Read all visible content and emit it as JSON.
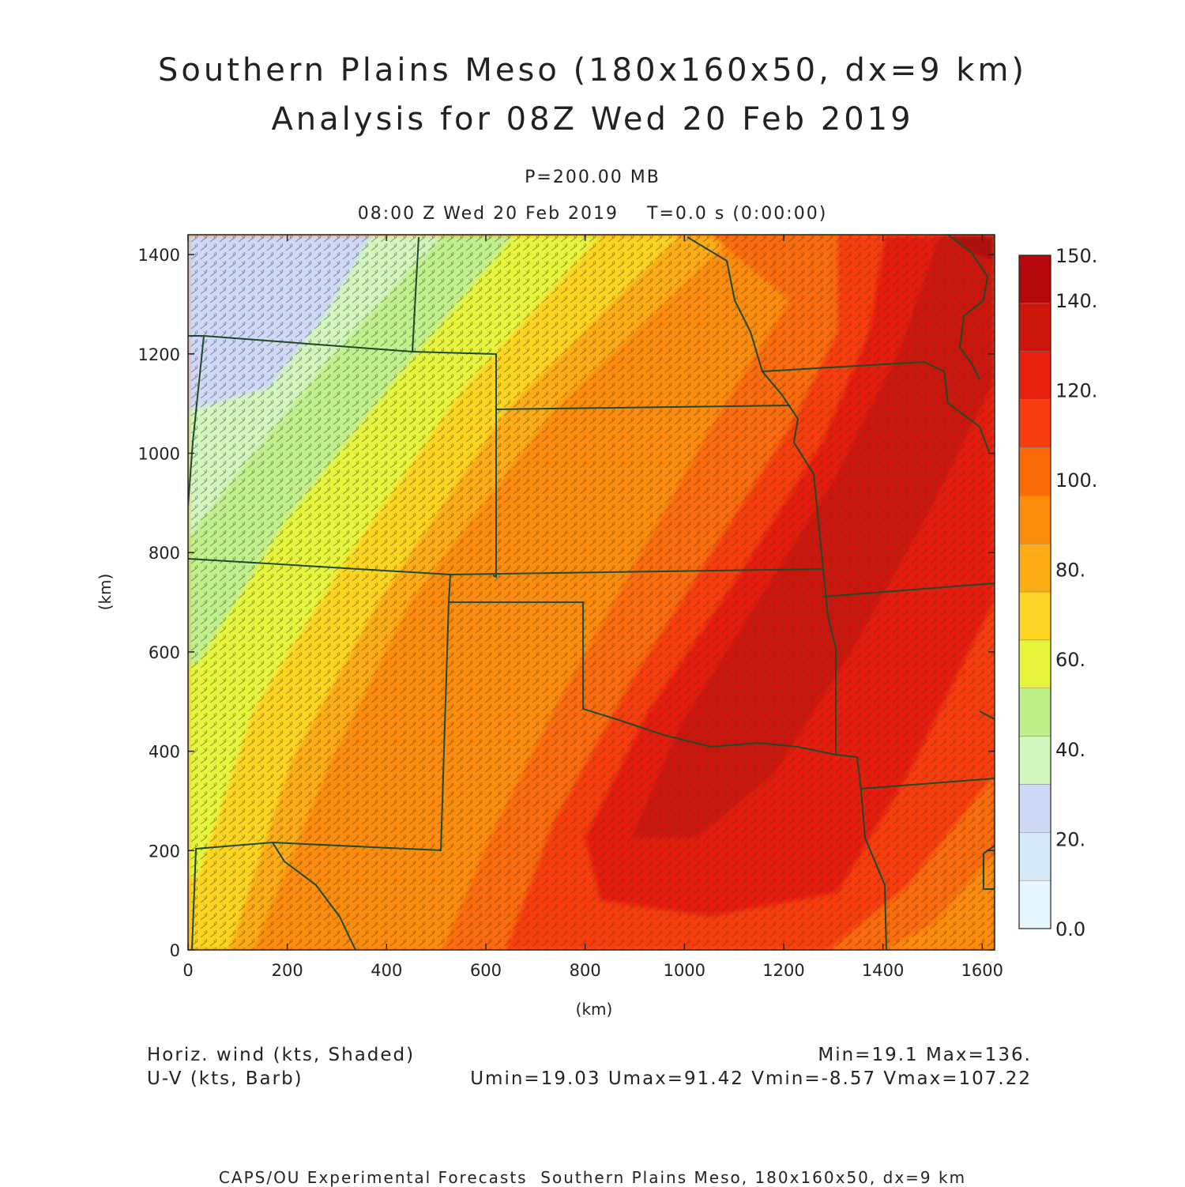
{
  "header": {
    "title_line1": "Southern Plains Meso (180x160x50, dx=9 km)",
    "title_line2": "Analysis for 08Z Wed 20 Feb 2019",
    "pressure": "P=200.00 MB",
    "time_line": "08:00 Z Wed 20 Feb 2019    T=0.0 s (0:00:00)"
  },
  "axes": {
    "x_label": "(km)",
    "y_label": "(km)",
    "x_ticks": [
      "0",
      "200",
      "400",
      "600",
      "800",
      "1000",
      "1200",
      "1400",
      "1600"
    ],
    "y_ticks": [
      "0",
      "200",
      "400",
      "600",
      "800",
      "1000",
      "1200",
      "1400"
    ],
    "x_range_km": [
      0,
      1625
    ],
    "y_range_km": [
      0,
      1440
    ]
  },
  "colorbar": {
    "labels": [
      "0.0",
      "20.",
      "40.",
      "60.",
      "80.",
      "100.",
      "120.",
      "140.",
      "150."
    ],
    "colors": [
      "#e8f6ff",
      "#d6ecfa",
      "#cfd8f6",
      "#d2f6be",
      "#c0f08c",
      "#e6f53c",
      "#fcd524",
      "#fcac14",
      "#fc8c0c",
      "#fa6c0a",
      "#f83e0e",
      "#e61f0e",
      "#cc160c",
      "#b4080a"
    ]
  },
  "footer": {
    "left_line1": "Horiz. wind (kts, Shaded)",
    "left_line2": "U-V (kts, Barb)",
    "right_line1": "Min=19.1 Max=136.",
    "right_line2": "Umin=19.03 Umax=91.42 Vmin=-8.57 Vmax=107.22",
    "credits": "CAPS/OU Experimental Forecasts  Southern Plains Meso, 180x160x50, dx=9 km"
  },
  "map": {
    "field": "horizontal wind speed",
    "units": "kts",
    "min": 19.1,
    "max": 136,
    "overlay": "wind barbs",
    "boundaries": "state borders"
  }
}
